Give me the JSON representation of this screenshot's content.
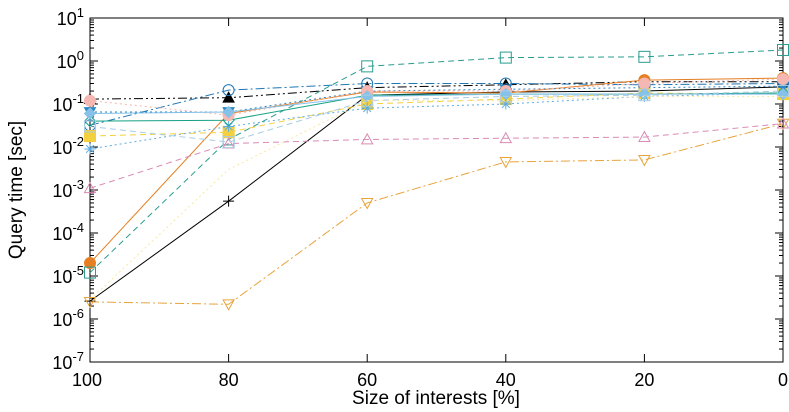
{
  "chart_data": {
    "type": "line",
    "title": "",
    "xlabel": "Size of interests [%]",
    "ylabel": "Query time [sec]",
    "x_reversed": true,
    "y_scale": "log",
    "xlim": [
      100,
      0
    ],
    "ylim": [
      1e-07,
      10
    ],
    "x_ticks": [
      {
        "value": 100,
        "label": "100"
      },
      {
        "value": 80,
        "label": "80"
      },
      {
        "value": 60,
        "label": "60"
      },
      {
        "value": 40,
        "label": "40"
      },
      {
        "value": 20,
        "label": "20"
      },
      {
        "value": 0,
        "label": "0"
      }
    ],
    "y_ticks": [
      {
        "value": 1e-07,
        "base": "10",
        "exp": "-7"
      },
      {
        "value": 1e-06,
        "base": "10",
        "exp": "-6"
      },
      {
        "value": 1e-05,
        "base": "10",
        "exp": "-5"
      },
      {
        "value": 0.0001,
        "base": "10",
        "exp": "-4"
      },
      {
        "value": 0.001,
        "base": "10",
        "exp": "-3"
      },
      {
        "value": 0.01,
        "base": "10",
        "exp": "-2"
      },
      {
        "value": 0.1,
        "base": "10",
        "exp": "-1"
      },
      {
        "value": 1,
        "base": "10",
        "exp": "0"
      },
      {
        "value": 10,
        "base": "10",
        "exp": "1"
      }
    ],
    "grid": false,
    "legend": "none",
    "x": [
      100,
      80,
      60,
      40,
      20,
      0
    ],
    "series": [
      {
        "color": "#000000",
        "dash": "solid",
        "marker": "plus",
        "values": [
          2.6e-06,
          0.00055,
          0.16,
          0.19,
          0.2,
          0.25
        ]
      },
      {
        "color": "#000000",
        "dash": "dashdotdot",
        "marker": "triangle-filled",
        "values": [
          0.13,
          0.14,
          0.24,
          0.28,
          0.33,
          0.33
        ]
      },
      {
        "color": "#1f77b4",
        "dash": "dashdot",
        "marker": "circle-open",
        "values": [
          0.032,
          0.21,
          0.3,
          0.3,
          0.28,
          0.3
        ]
      },
      {
        "color": "#e67e22",
        "dash": "solid",
        "marker": "circle-filled",
        "values": [
          2e-05,
          0.06,
          0.19,
          0.18,
          0.36,
          0.4
        ]
      },
      {
        "color": "#2a9d8f",
        "dash": "dashed",
        "marker": "square-open",
        "values": [
          1.2e-05,
          0.015,
          0.75,
          1.2,
          1.25,
          1.8
        ]
      },
      {
        "color": "#f4d03f",
        "dash": "dashed",
        "marker": "square-filled",
        "values": [
          0.018,
          0.022,
          0.1,
          0.13,
          0.18,
          0.17
        ]
      },
      {
        "color": "#e8a33c",
        "dash": "dashdot",
        "marker": "triangle-down-open",
        "values": [
          2.5e-06,
          2.2e-06,
          0.0005,
          0.0045,
          0.005,
          0.035
        ]
      },
      {
        "color": "#d98ab5",
        "dash": "dashed",
        "marker": "triangle-open",
        "values": [
          0.0011,
          0.012,
          0.015,
          0.016,
          0.017,
          0.035
        ]
      },
      {
        "color": "#5dade2",
        "dash": "dotted",
        "marker": "star",
        "values": [
          0.009,
          0.03,
          0.08,
          0.1,
          0.15,
          0.18
        ]
      },
      {
        "color": "#16a085",
        "dash": "solid",
        "marker": "diamond-open",
        "values": [
          0.04,
          0.042,
          0.16,
          0.17,
          0.17,
          0.18
        ]
      },
      {
        "color": "#2e86c1",
        "dash": "dotted",
        "marker": "triangle-down-filled",
        "values": [
          0.065,
          0.065,
          0.2,
          0.22,
          0.24,
          0.26
        ]
      },
      {
        "color": "#f5b7b1",
        "dash": "dotted",
        "marker": "circle-filled",
        "values": [
          0.12,
          0.055,
          0.2,
          0.2,
          0.3,
          0.38
        ]
      },
      {
        "color": "#85c1e9",
        "dash": "solid",
        "marker": "diamond-filled",
        "values": [
          0.06,
          0.065,
          0.15,
          0.17,
          0.17,
          0.17
        ]
      },
      {
        "color": "#a9cce3",
        "dash": "dashed",
        "marker": "square-open",
        "values": [
          0.03,
          0.013,
          0.12,
          0.15,
          0.16,
          0.2
        ]
      },
      {
        "color": "#f9e79f",
        "dash": "dotted",
        "marker": "none",
        "values": [
          2.8e-06,
          0.003,
          0.12,
          0.12,
          0.15,
          0.15
        ]
      }
    ]
  }
}
